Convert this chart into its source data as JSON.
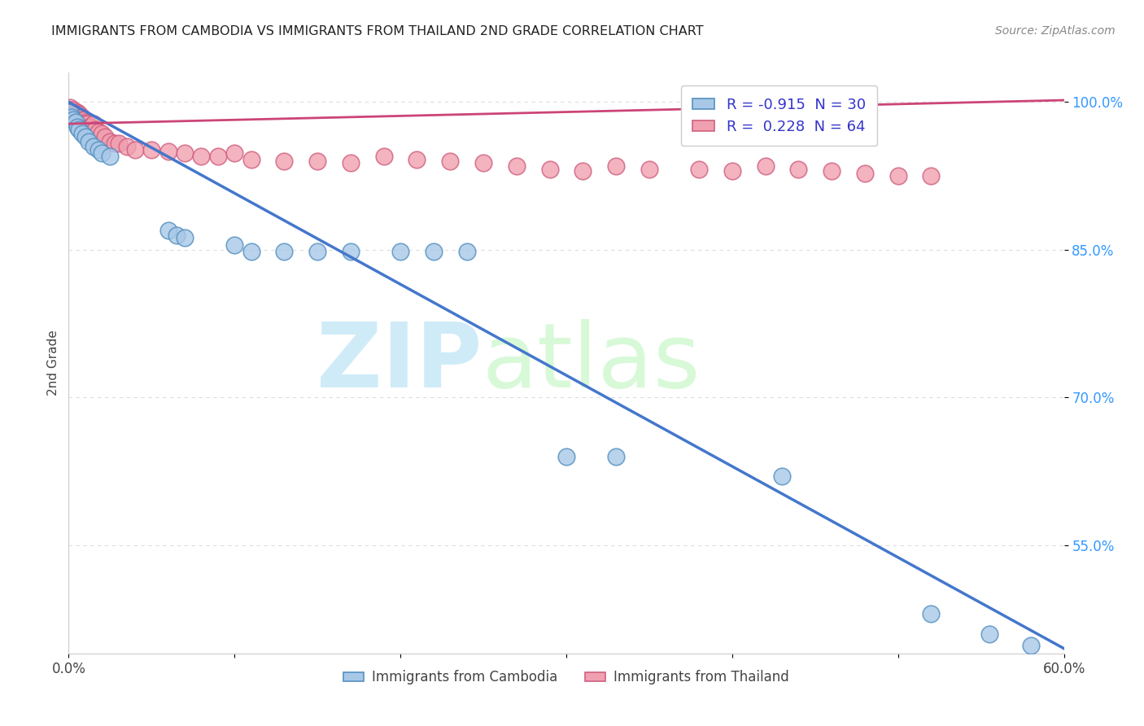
{
  "title": "IMMIGRANTS FROM CAMBODIA VS IMMIGRANTS FROM THAILAND 2ND GRADE CORRELATION CHART",
  "source_text": "Source: ZipAtlas.com",
  "xlabel_cambodia": "Immigrants from Cambodia",
  "xlabel_thailand": "Immigrants from Thailand",
  "ylabel": "2nd Grade",
  "watermark_zip": "ZIP",
  "watermark_atlas": "atlas",
  "xlim": [
    0.0,
    0.6
  ],
  "ylim": [
    0.44,
    1.03
  ],
  "xtick_labels": [
    "0.0%",
    "",
    "",
    "",
    "",
    "",
    "60.0%"
  ],
  "xtick_values": [
    0.0,
    0.1,
    0.2,
    0.3,
    0.4,
    0.5,
    0.6
  ],
  "ytick_labels": [
    "55.0%",
    "70.0%",
    "85.0%",
    "100.0%"
  ],
  "ytick_values": [
    0.55,
    0.7,
    0.85,
    1.0
  ],
  "cambodia_color": "#a8c8e8",
  "cambodia_edge_color": "#5590c0",
  "thailand_color": "#f0a0b0",
  "thailand_edge_color": "#d06080",
  "cambodia_R": -0.915,
  "cambodia_N": 30,
  "thailand_R": 0.228,
  "thailand_N": 64,
  "cambodia_line_color": "#4477cc",
  "thailand_line_color": "#cc4477",
  "grid_color": "#dddddd",
  "background_color": "#ffffff",
  "cambodia_x": [
    0.001,
    0.002,
    0.003,
    0.004,
    0.005,
    0.006,
    0.008,
    0.01,
    0.012,
    0.015,
    0.018,
    0.02,
    0.025,
    0.06,
    0.065,
    0.07,
    0.1,
    0.11,
    0.13,
    0.15,
    0.17,
    0.2,
    0.22,
    0.24,
    0.3,
    0.33,
    0.43,
    0.52,
    0.555,
    0.58
  ],
  "cambodia_y": [
    0.99,
    0.985,
    0.982,
    0.98,
    0.975,
    0.972,
    0.968,
    0.965,
    0.96,
    0.955,
    0.952,
    0.948,
    0.945,
    0.87,
    0.865,
    0.862,
    0.855,
    0.848,
    0.848,
    0.848,
    0.848,
    0.848,
    0.848,
    0.848,
    0.64,
    0.64,
    0.62,
    0.48,
    0.46,
    0.448
  ],
  "thailand_x": [
    0.001,
    0.001,
    0.002,
    0.002,
    0.002,
    0.003,
    0.003,
    0.003,
    0.004,
    0.004,
    0.004,
    0.005,
    0.005,
    0.005,
    0.006,
    0.006,
    0.007,
    0.007,
    0.008,
    0.008,
    0.009,
    0.01,
    0.01,
    0.011,
    0.012,
    0.013,
    0.014,
    0.015,
    0.016,
    0.018,
    0.02,
    0.022,
    0.025,
    0.028,
    0.03,
    0.035,
    0.04,
    0.05,
    0.06,
    0.07,
    0.08,
    0.09,
    0.1,
    0.11,
    0.13,
    0.15,
    0.17,
    0.19,
    0.21,
    0.23,
    0.25,
    0.27,
    0.29,
    0.31,
    0.33,
    0.35,
    0.38,
    0.4,
    0.42,
    0.44,
    0.46,
    0.48,
    0.5,
    0.52
  ],
  "thailand_y": [
    0.995,
    0.992,
    0.99,
    0.988,
    0.985,
    0.992,
    0.988,
    0.985,
    0.99,
    0.987,
    0.984,
    0.99,
    0.988,
    0.985,
    0.988,
    0.985,
    0.985,
    0.982,
    0.985,
    0.982,
    0.982,
    0.98,
    0.978,
    0.978,
    0.975,
    0.975,
    0.972,
    0.978,
    0.972,
    0.97,
    0.968,
    0.965,
    0.96,
    0.958,
    0.958,
    0.955,
    0.952,
    0.952,
    0.95,
    0.948,
    0.945,
    0.945,
    0.948,
    0.942,
    0.94,
    0.94,
    0.938,
    0.945,
    0.942,
    0.94,
    0.938,
    0.935,
    0.932,
    0.93,
    0.935,
    0.932,
    0.932,
    0.93,
    0.935,
    0.932,
    0.93,
    0.928,
    0.925,
    0.925
  ],
  "cam_trend_x": [
    0.0,
    0.6
  ],
  "cam_trend_y": [
    1.0,
    0.445
  ],
  "thai_trend_x": [
    0.0,
    0.6
  ],
  "thai_trend_y": [
    0.978,
    1.002
  ]
}
